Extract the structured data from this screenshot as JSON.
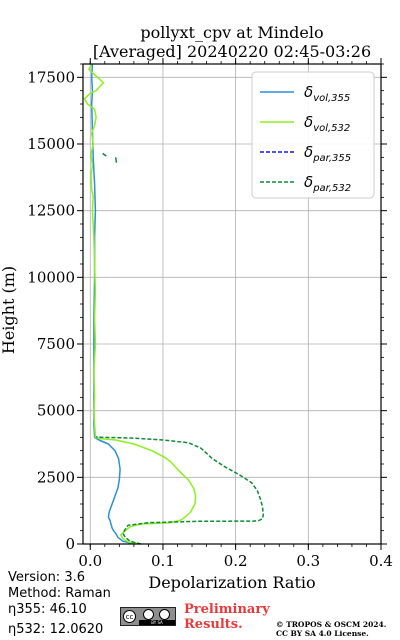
{
  "chart_data": {
    "type": "line",
    "title": [
      "pollyxt_cpv at Mindelo",
      "[Averaged] 20240220 02:45-03:26"
    ],
    "xlabel": "Depolarization Ratio",
    "ylabel": "Height (m)",
    "xlim": [
      -0.01,
      0.4
    ],
    "ylim": [
      0,
      18000
    ],
    "x_ticks": [
      0.0,
      0.1,
      0.2,
      0.3,
      0.4
    ],
    "x_tick_labels": [
      "0.0",
      "0.1",
      "0.2",
      "0.3",
      "0.4"
    ],
    "y_ticks": [
      0,
      2500,
      5000,
      7500,
      10000,
      12500,
      15000,
      17500
    ],
    "y_tick_labels": [
      "0",
      "2500",
      "5000",
      "7500",
      "10000",
      "12500",
      "15000",
      "17500"
    ],
    "grid": true,
    "legend_position": "top-right",
    "series": [
      {
        "name_base": "δ",
        "name_sub": "vol,355",
        "color": "#2b8fdb",
        "dash": "solid",
        "points": [
          [
            0.062,
            0
          ],
          [
            0.045,
            100
          ],
          [
            0.038,
            250
          ],
          [
            0.035,
            400
          ],
          [
            0.032,
            500
          ],
          [
            0.03,
            600
          ],
          [
            0.028,
            800
          ],
          [
            0.027,
            900
          ],
          [
            0.025,
            1000
          ],
          [
            0.026,
            1200
          ],
          [
            0.03,
            1500
          ],
          [
            0.034,
            1800
          ],
          [
            0.038,
            2100
          ],
          [
            0.04,
            2400
          ],
          [
            0.041,
            2800
          ],
          [
            0.039,
            3200
          ],
          [
            0.034,
            3500
          ],
          [
            0.025,
            3750
          ],
          [
            0.012,
            3900
          ],
          [
            0.006,
            4000
          ],
          [
            0.005,
            4500
          ],
          [
            0.005,
            5500
          ],
          [
            0.005,
            7000
          ],
          [
            0.005,
            8500
          ],
          [
            0.006,
            10000
          ],
          [
            0.006,
            11500
          ],
          [
            0.007,
            12500
          ],
          [
            0.006,
            13500
          ],
          [
            0.004,
            14500
          ],
          [
            0.003,
            15500
          ],
          [
            0.002,
            16500
          ],
          [
            0.003,
            17000
          ],
          [
            0.002,
            17500
          ],
          [
            0.003,
            18000
          ]
        ]
      },
      {
        "name_base": "δ",
        "name_sub": "vol,532",
        "color": "#8cf01e",
        "dash": "solid",
        "points": [
          [
            0.068,
            0
          ],
          [
            0.052,
            80
          ],
          [
            0.045,
            200
          ],
          [
            0.042,
            350
          ],
          [
            0.048,
            500
          ],
          [
            0.055,
            650
          ],
          [
            0.07,
            750
          ],
          [
            0.11,
            800
          ],
          [
            0.125,
            900
          ],
          [
            0.13,
            1000
          ],
          [
            0.138,
            1200
          ],
          [
            0.144,
            1500
          ],
          [
            0.145,
            1800
          ],
          [
            0.142,
            2100
          ],
          [
            0.135,
            2400
          ],
          [
            0.122,
            2750
          ],
          [
            0.11,
            3100
          ],
          [
            0.102,
            3250
          ],
          [
            0.085,
            3500
          ],
          [
            0.06,
            3750
          ],
          [
            0.035,
            3900
          ],
          [
            0.015,
            3950
          ],
          [
            0.007,
            4000
          ],
          [
            0.006,
            4500
          ],
          [
            0.005,
            5000
          ],
          [
            0.006,
            5500
          ],
          [
            0.005,
            6500
          ],
          [
            0.007,
            7500
          ],
          [
            0.006,
            8500
          ],
          [
            0.007,
            9500
          ],
          [
            0.006,
            10500
          ],
          [
            0.005,
            11500
          ],
          [
            0.004,
            12000
          ],
          [
            0.003,
            12500
          ],
          [
            0.004,
            13000
          ],
          [
            0.002,
            13300
          ],
          [
            0.001,
            13800
          ],
          [
            0.003,
            14200
          ],
          [
            0.001,
            14600
          ],
          [
            0.004,
            15000
          ],
          [
            0.002,
            15400
          ],
          [
            0.006,
            15700
          ],
          [
            0.008,
            16000
          ],
          [
            0.006,
            16300
          ],
          [
            -0.004,
            16500
          ],
          [
            -0.008,
            16700
          ],
          [
            0.0,
            16900
          ],
          [
            0.008,
            17000
          ],
          [
            0.018,
            17300
          ],
          [
            0.01,
            17500
          ],
          [
            -0.002,
            17800
          ],
          [
            0.002,
            18000
          ]
        ]
      },
      {
        "name_base": "δ",
        "name_sub": "par,355",
        "color": "#1a1ad6",
        "dash": "dashed",
        "points": []
      },
      {
        "name_base": "δ",
        "name_sub": "par,532",
        "color": "#0f8a35",
        "dash": "dashed",
        "points": [
          [
            0.07,
            0
          ],
          [
            0.055,
            100
          ],
          [
            0.048,
            250
          ],
          [
            0.045,
            400
          ],
          [
            0.048,
            550
          ],
          [
            0.052,
            700
          ],
          [
            0.08,
            800
          ],
          [
            0.15,
            850
          ],
          [
            0.225,
            860
          ],
          [
            0.232,
            880
          ],
          [
            0.237,
            950
          ],
          [
            0.238,
            1100
          ],
          [
            0.237,
            1400
          ],
          [
            0.234,
            1700
          ],
          [
            0.23,
            2000
          ],
          [
            0.222,
            2300
          ],
          [
            0.205,
            2600
          ],
          [
            0.185,
            2900
          ],
          [
            0.168,
            3200
          ],
          [
            0.16,
            3400
          ],
          [
            0.152,
            3600
          ],
          [
            0.135,
            3800
          ],
          [
            0.1,
            3900
          ],
          [
            0.06,
            3970
          ],
          [
            0.015,
            4000
          ],
          [
            0.008,
            4020
          ]
        ]
      }
    ]
  },
  "info": {
    "version": "Version: 3.6",
    "method": "Method: Raman",
    "eta355": "η355:  46.10",
    "eta532": "η532: 12.0620"
  },
  "prelim": {
    "line1": "Preliminary",
    "line2": "Results."
  },
  "license_badge": {
    "icon_text": "cc",
    "strip": "BY  SA"
  },
  "copyright": {
    "line1": "© TROPOS & OSCM 2024.",
    "line2": "CC BY SA 4.0 License."
  }
}
